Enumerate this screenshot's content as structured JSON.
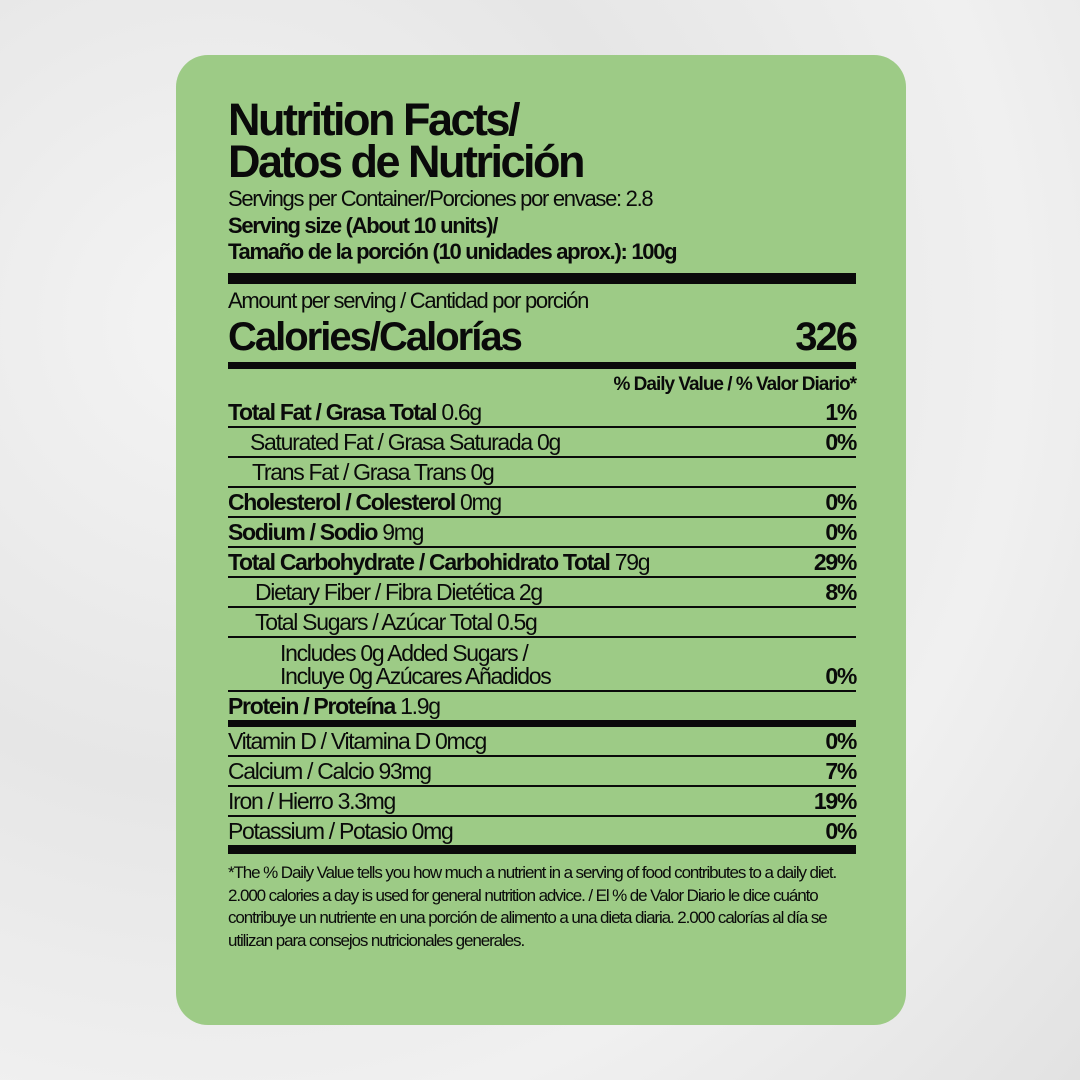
{
  "title_line1": "Nutrition Facts/",
  "title_line2": "Datos de Nutrición",
  "servings": "Servings per Container/Porciones por envase: 2.8",
  "serving_size_line1": "Serving size (About 10 units)/",
  "serving_size_line2": "Tamaño de la porción (10 unidades aprox.): 100g",
  "amount_per_serving": "Amount per serving / Cantidad por porción",
  "calories_label": "Calories/Calorías",
  "calories_value": "326",
  "dv_header": "% Daily Value / % Valor Diario*",
  "nutrients": [
    {
      "bold": "Total Fat / Grasa Total",
      "amount": " 0.6g",
      "dv": "1%"
    },
    {
      "bold": "",
      "amount": "Saturated Fat / Grasa Saturada 0g",
      "dv": "0%"
    },
    {
      "bold": "",
      "amount": "Trans Fat / Grasa Trans 0g",
      "dv": ""
    },
    {
      "bold": "Cholesterol / Colesterol",
      "amount": " 0mg",
      "dv": "0%"
    },
    {
      "bold": "Sodium / Sodio",
      "amount": " 9mg",
      "dv": "0%"
    },
    {
      "bold": "Total Carbohydrate / Carbohidrato Total",
      "amount": " 79g",
      "dv": "29%"
    },
    {
      "bold": "",
      "amount": "Dietary Fiber / Fibra Dietética 2g",
      "dv": "8%"
    },
    {
      "bold": "",
      "amount": "Total Sugars / Azúcar Total 0.5g",
      "dv": ""
    },
    {
      "bold": "",
      "amount": "Includes 0g Added Sugars /",
      "amount2": "Incluye 0g Azúcares Añadidos",
      "dv": "0%"
    },
    {
      "bold": "Protein / Proteína",
      "amount": " 1.9g",
      "dv": ""
    }
  ],
  "vitamins": [
    {
      "label": "Vitamin D / Vitamina D 0mcg",
      "dv": "0%"
    },
    {
      "label": "Calcium / Calcio 93mg",
      "dv": "7%"
    },
    {
      "label": "Iron / Hierro 3.3mg",
      "dv": "19%"
    },
    {
      "label": "Potassium / Potasio 0mg",
      "dv": "0%"
    }
  ],
  "footnote": "*The % Daily Value tells you how much a nutrient in a serving of food contributes to a daily diet. 2.000 calories a day is used for general nutrition advice. / El % de Valor Diario le dice cuánto contribuye un nutriente en una porción de alimento a una dieta diaria. 2.000 calorías al día se utilizan para consejos nutricionales generales.",
  "colors": {
    "label_background": "#9dcb86",
    "text": "#0a0a0a"
  }
}
